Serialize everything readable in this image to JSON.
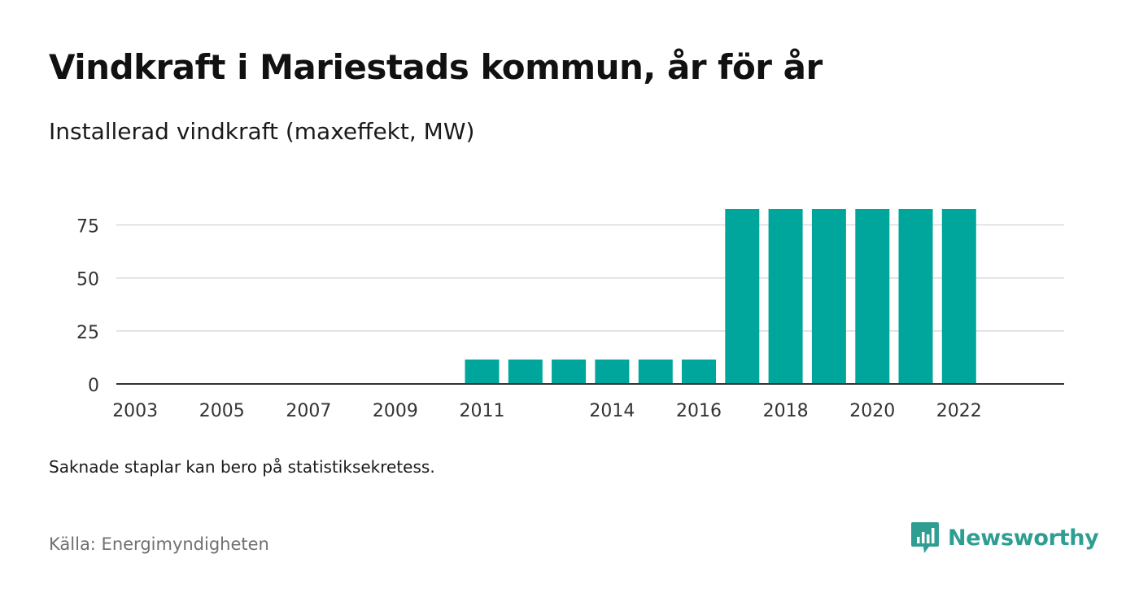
{
  "header": {
    "title": "Vindkraft i Mariestads kommun, år för år",
    "subtitle": "Installerad vindkraft (maxeffekt, MW)"
  },
  "footer": {
    "note": "Saknade staplar kan bero på statistiksekretess.",
    "source": "Källa: Energimyndigheten",
    "brand": "Newsworthy"
  },
  "colors": {
    "bar": "#00a69c",
    "grid": "#d9d9d9",
    "axis": "#333333",
    "brand": "#2e9e92"
  },
  "chart_data": {
    "type": "bar",
    "title": "Vindkraft i Mariestads kommun, år för år",
    "subtitle": "Installerad vindkraft (maxeffekt, MW)",
    "categories": [
      "2003",
      "2004",
      "2005",
      "2006",
      "2007",
      "2008",
      "2009",
      "2010",
      "2011",
      "2012",
      "2013",
      "2014",
      "2015",
      "2016",
      "2017",
      "2018",
      "2019",
      "2020",
      "2021",
      "2022"
    ],
    "x_tick_labels": [
      "2003",
      "2005",
      "2007",
      "2009",
      "2011",
      "2014",
      "2016",
      "2018",
      "2020",
      "2022"
    ],
    "values": [
      0,
      0,
      0,
      0,
      0,
      0,
      0,
      0,
      11.5,
      11.5,
      11.5,
      11.5,
      11.5,
      11.5,
      82.5,
      82.5,
      82.5,
      82.5,
      82.5,
      82.5
    ],
    "y_ticks": [
      0,
      25,
      50,
      75
    ],
    "ylim": [
      0,
      82.5
    ],
    "grid": true,
    "xlabel": "",
    "ylabel": ""
  }
}
